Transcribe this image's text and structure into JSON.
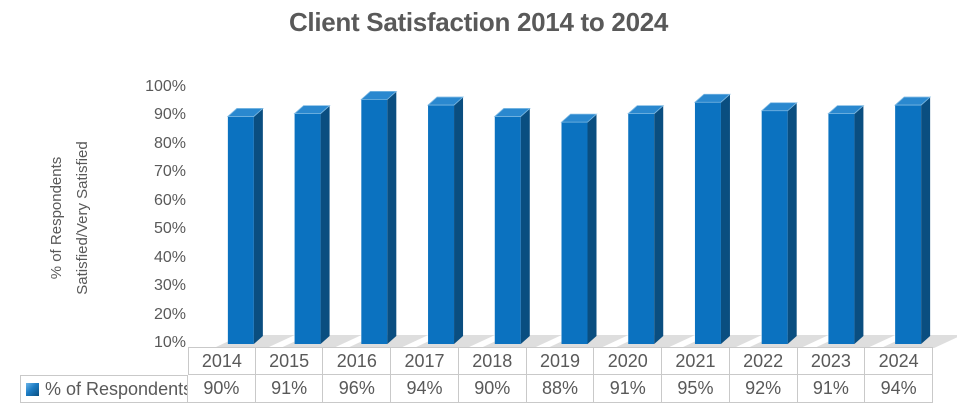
{
  "title": "Client Satisfaction 2014 to 2024",
  "y_axis": {
    "label_line1": "% of Respondents",
    "label_line2": "Satisfied/Very Satisfied",
    "ticks": [
      "100%",
      "90%",
      "80%",
      "70%",
      "60%",
      "50%",
      "40%",
      "30%",
      "20%",
      "10%"
    ]
  },
  "table": {
    "row_label": "% of Respondents",
    "years": [
      "2014",
      "2015",
      "2016",
      "2017",
      "2018",
      "2019",
      "2020",
      "2021",
      "2022",
      "2023",
      "2024"
    ],
    "values": [
      "90%",
      "91%",
      "96%",
      "94%",
      "90%",
      "88%",
      "91%",
      "95%",
      "92%",
      "91%",
      "94%"
    ]
  },
  "chart_data": {
    "type": "bar",
    "style": "3d-column",
    "title": "Client Satisfaction 2014 to 2024",
    "categories": [
      "2014",
      "2015",
      "2016",
      "2017",
      "2018",
      "2019",
      "2020",
      "2021",
      "2022",
      "2023",
      "2024"
    ],
    "series": [
      {
        "name": "% of Respondents",
        "values": [
          90,
          91,
          96,
          94,
          90,
          88,
          91,
          95,
          92,
          91,
          94
        ]
      }
    ],
    "xlabel": "",
    "ylabel": "% of Respondents Satisfied/Very Satisfied",
    "ylim": [
      10,
      100
    ],
    "y_tick_step": 10,
    "y_tick_format": "percent",
    "grid": false,
    "legend_position": "data-table-left"
  },
  "colors": {
    "bar_front": "#0B72C0",
    "bar_top": "#2A88CF",
    "bar_top_edge": "#7DB9E3",
    "bar_side": "#0A4E80",
    "shadow": "#D0D0D0",
    "text": "#595959",
    "table_border": "#C9C9C9"
  }
}
